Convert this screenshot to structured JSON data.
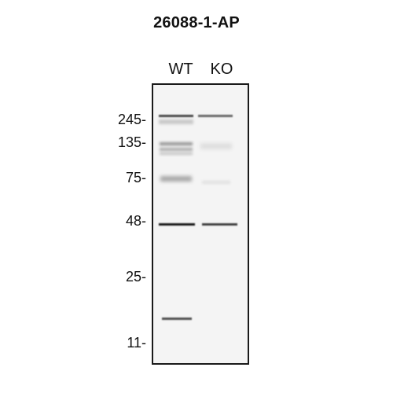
{
  "title": "26088-1-AP",
  "lanes": [
    "WT",
    "KO"
  ],
  "markers": [
    "245-",
    "135-",
    "75-",
    "48-",
    "25-",
    "11-"
  ],
  "colors": {
    "background": "#ffffff",
    "membrane": "#f4f4f4",
    "band_dark": "#1c1c1c",
    "text": "#111111"
  }
}
